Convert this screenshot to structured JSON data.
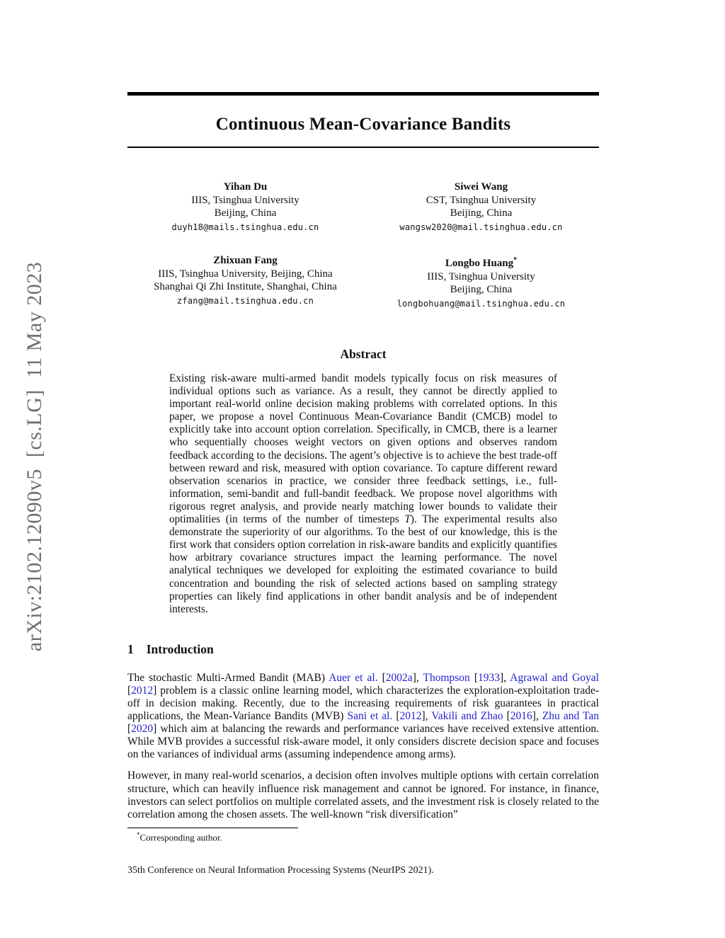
{
  "page": {
    "title": "Continuous Mean-Covariance Bandits",
    "watermark": "arXiv:2102.12090v5  [cs.LG]  11 May 2023",
    "colors": {
      "citation": "#2222cc",
      "watermark": "#6f6f6f",
      "rule": "#000000"
    }
  },
  "authors": [
    {
      "name": "Yihan Du",
      "affil1": "IIIS, Tsinghua University",
      "affil2": "Beijing, China",
      "email": "duyh18@mails.tsinghua.edu.cn"
    },
    {
      "name": "Siwei Wang",
      "affil1": "CST, Tsinghua University",
      "affil2": "Beijing, China",
      "email": "wangsw2020@mail.tsinghua.edu.cn"
    },
    {
      "name": "Zhixuan Fang",
      "affil1": "IIIS, Tsinghua University, Beijing, China",
      "affil2": "Shanghai Qi Zhi Institute, Shanghai, China",
      "email": "zfang@mail.tsinghua.edu.cn"
    },
    {
      "name": "Longbo Huang",
      "sup": "*",
      "affil1": "IIIS, Tsinghua University",
      "affil2": "Beijing, China",
      "email": "longbohuang@mail.tsinghua.edu.cn"
    }
  ],
  "abstract": {
    "heading": "Abstract",
    "segments": [
      {
        "t": "Existing risk-aware multi-armed bandit models typically focus on risk measures of individual options such as variance.  As a result, they cannot be directly applied to important real-world online decision making problems with correlated options. In this paper, we propose a novel Continuous Mean-Covariance Bandit (CMCB) model to explicitly take into account option correlation.  Specifically, in CMCB, there is a learner who sequentially chooses weight vectors on given options and observes random feedback according to the decisions. The agent’s objective is to achieve the best trade-off between reward and risk, measured with option covariance. To capture different reward observation scenarios in practice, we consider three feedback settings, i.e., full-information, semi-bandit and full-bandit feedback. We propose novel algorithms with rigorous regret analysis, and provide nearly matching lower bounds to validate their optimalities (in terms of the number of timesteps ",
        "s": "plain"
      },
      {
        "t": "T",
        "s": "italic"
      },
      {
        "t": ").  The experimental results also demonstrate the superiority of our algorithms. To the best of our knowledge, this is the first work that considers option correlation in risk-aware bandits and explicitly quantifies how arbitrary covariance structures impact the learning performance. The novel analytical techniques we developed for exploiting the estimated covariance to build concentration and bounding the risk of selected actions based on sampling strategy properties can likely find applications in other bandit analysis and be of independent interests.",
        "s": "plain"
      }
    ]
  },
  "introduction": {
    "heading_number": "1",
    "heading": "Introduction",
    "paragraph1": [
      {
        "t": "The stochastic Multi-Armed Bandit (MAB) ",
        "s": "plain"
      },
      {
        "t": "Auer et al.",
        "s": "cite"
      },
      {
        "t": " [",
        "s": "plain"
      },
      {
        "t": "2002a",
        "s": "cite"
      },
      {
        "t": "], ",
        "s": "plain"
      },
      {
        "t": "Thompson",
        "s": "cite"
      },
      {
        "t": " [",
        "s": "plain"
      },
      {
        "t": "1933",
        "s": "cite"
      },
      {
        "t": "], ",
        "s": "plain"
      },
      {
        "t": "Agrawal and Goyal",
        "s": "cite"
      },
      {
        "t": " [",
        "s": "plain"
      },
      {
        "t": "2012",
        "s": "cite"
      },
      {
        "t": "] problem is a classic online learning model, which characterizes the exploration-exploitation trade-off in decision making.  Recently, due to the increasing requirements of risk guarantees in practical applications, the Mean-Variance Bandits (MVB) ",
        "s": "plain"
      },
      {
        "t": "Sani et al.",
        "s": "cite"
      },
      {
        "t": " [",
        "s": "plain"
      },
      {
        "t": "2012",
        "s": "cite"
      },
      {
        "t": "], ",
        "s": "plain"
      },
      {
        "t": "Vakili and Zhao",
        "s": "cite"
      },
      {
        "t": " [",
        "s": "plain"
      },
      {
        "t": "2016",
        "s": "cite"
      },
      {
        "t": "], ",
        "s": "plain"
      },
      {
        "t": "Zhu and Tan",
        "s": "cite"
      },
      {
        "t": " [",
        "s": "plain"
      },
      {
        "t": "2020",
        "s": "cite"
      },
      {
        "t": "] which aim at balancing the rewards and performance variances have received extensive attention. While MVB provides a successful risk-aware model, it only considers discrete decision space and focuses on the variances of individual arms (assuming independence among arms).",
        "s": "plain"
      }
    ],
    "paragraph2": [
      {
        "t": "However, in many real-world scenarios, a decision often involves multiple options with certain correlation structure, which can heavily influence risk management and cannot be ignored.  For instance, in finance, investors can select portfolios on multiple correlated assets, and the investment risk is closely related to the correlation among the chosen assets. The well-known “risk diversification”",
        "s": "plain"
      }
    ]
  },
  "footnote": {
    "marker": "*",
    "text": "Corresponding author."
  },
  "footer": {
    "text": "35th Conference on Neural Information Processing Systems (NeurIPS 2021)."
  }
}
